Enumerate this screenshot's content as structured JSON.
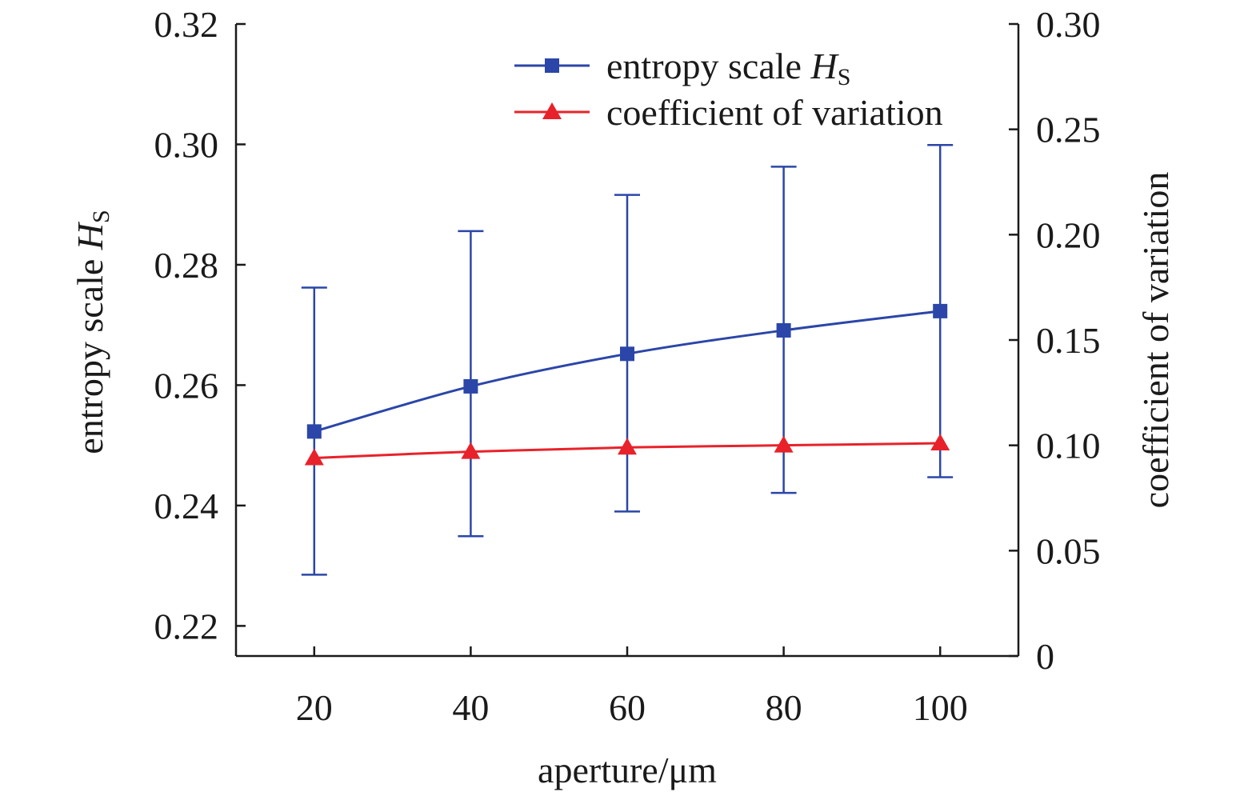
{
  "chart_data": {
    "type": "line",
    "x": [
      20,
      40,
      60,
      80,
      100
    ],
    "xlabel": "aperture/μm",
    "xlim": [
      10,
      110
    ],
    "x_ticks": [
      "20",
      "40",
      "60",
      "80",
      "100"
    ],
    "ylabel_left": {
      "text": "entropy scale ",
      "italic": "H",
      "sub": "S"
    },
    "ylim_left": [
      0.215,
      0.32
    ],
    "y_ticks_left": [
      "0.22",
      "0.24",
      "0.26",
      "0.28",
      "0.30",
      "0.32"
    ],
    "ylabel_right": "coefficient of variation",
    "ylim_right": [
      0,
      0.3
    ],
    "y_ticks_right": [
      "0",
      "0.05",
      "0.10",
      "0.15",
      "0.20",
      "0.25",
      "0.30"
    ],
    "grid": false,
    "legend_position": "top-right",
    "series": [
      {
        "name": {
          "text": "entropy scale ",
          "italic": "H",
          "sub": "S"
        },
        "axis": "left",
        "color": "#2b46a8",
        "marker": "square",
        "values": [
          0.2523,
          0.2598,
          0.2652,
          0.2691,
          0.2723
        ],
        "error_upper": [
          0.2762,
          0.2856,
          0.2916,
          0.2963,
          0.2999
        ],
        "error_lower": [
          0.2285,
          0.2349,
          0.239,
          0.2421,
          0.2447
        ]
      },
      {
        "name": {
          "text": "coefficient of variation",
          "italic": "",
          "sub": ""
        },
        "axis": "right",
        "color": "#e8222a",
        "marker": "triangle",
        "values": [
          0.094,
          0.097,
          0.099,
          0.1,
          0.101
        ]
      }
    ]
  }
}
